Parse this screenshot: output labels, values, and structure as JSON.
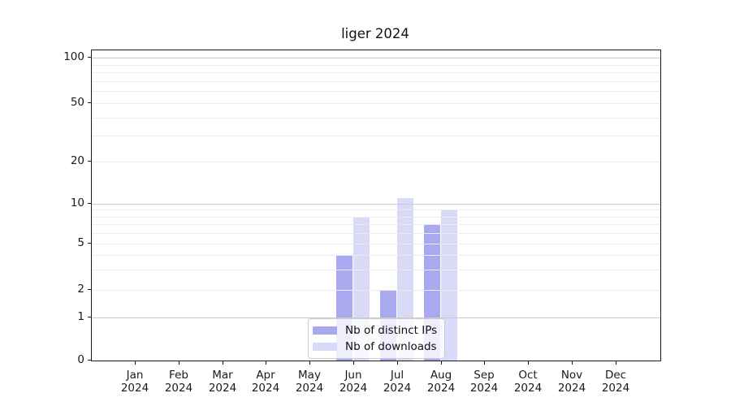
{
  "figure_title": "liger 2024",
  "chart_data": {
    "type": "bar",
    "title": "liger 2024",
    "categories": [
      "Jan 2024",
      "Feb 2024",
      "Mar 2024",
      "Apr 2024",
      "May 2024",
      "Jun 2024",
      "Jul 2024",
      "Aug 2024",
      "Sep 2024",
      "Oct 2024",
      "Nov 2024",
      "Dec 2024"
    ],
    "series": [
      {
        "name": "Nb of distinct IPs",
        "color": "#a9a9f0",
        "values": [
          0,
          0,
          0,
          0,
          0,
          4,
          2,
          7,
          0,
          0,
          0,
          0
        ]
      },
      {
        "name": "Nb of downloads",
        "color": "#d9d9f8",
        "values": [
          0,
          0,
          0,
          0,
          0,
          8,
          11,
          9,
          0,
          0,
          0,
          0
        ]
      }
    ],
    "yscale": "symlog",
    "ylim": [
      0,
      100
    ],
    "y_ticks": [
      0,
      1,
      2,
      5,
      10,
      20,
      50,
      100
    ],
    "y_major_gridlines": [
      1,
      10,
      100
    ],
    "y_minor_gridlines": [
      2,
      3,
      4,
      5,
      6,
      7,
      8,
      9,
      20,
      30,
      40,
      50,
      60,
      70,
      80,
      90
    ],
    "grid": true,
    "legend_position": "lower center",
    "colors": {
      "major_grid": "#c9c9c9",
      "minor_grid": "#ececec",
      "spine": "#1a1a1a",
      "text": "#111111"
    }
  }
}
